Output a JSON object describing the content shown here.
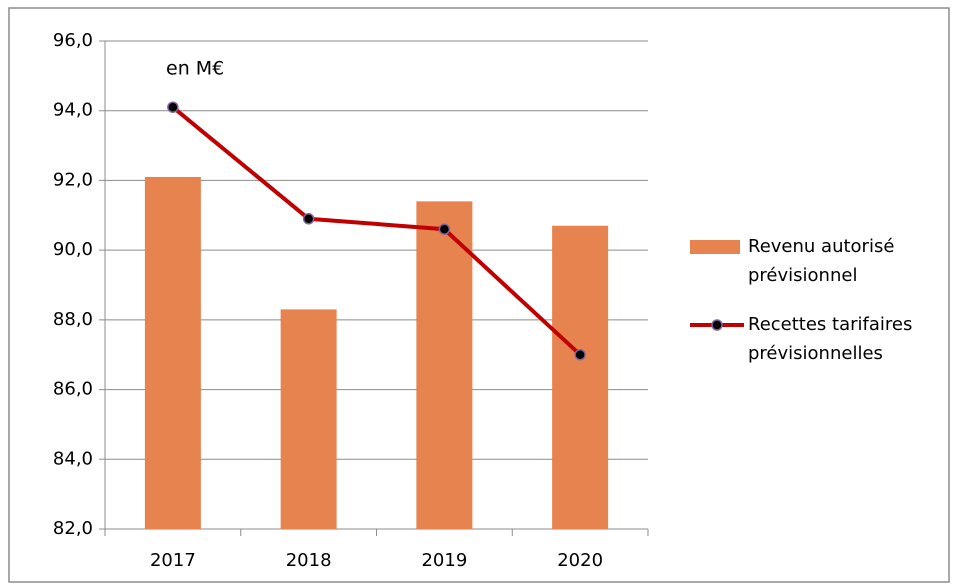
{
  "chart_data": {
    "type": "bar",
    "annotation": "en M€",
    "categories": [
      "2017",
      "2018",
      "2019",
      "2020"
    ],
    "series": [
      {
        "name": "Revenu autorisé prévisionnel",
        "type": "bar",
        "color": "#e6834f",
        "values": [
          92.1,
          88.3,
          91.4,
          90.7
        ]
      },
      {
        "name": "Recettes tarifaires prévisionnelles",
        "type": "line",
        "color": "#c00000",
        "marker_color": "#000000",
        "values": [
          94.1,
          90.9,
          90.6,
          87.0
        ]
      }
    ],
    "ylim": [
      82,
      96
    ],
    "yticks": [
      {
        "value": 82,
        "label": "82,0"
      },
      {
        "value": 84,
        "label": "84,0"
      },
      {
        "value": 86,
        "label": "86,0"
      },
      {
        "value": 88,
        "label": "88,0"
      },
      {
        "value": 90,
        "label": "90,0"
      },
      {
        "value": 92,
        "label": "92,0"
      },
      {
        "value": 94,
        "label": "94,0"
      },
      {
        "value": 96,
        "label": "96,0"
      }
    ],
    "grid": true,
    "legend": "right"
  }
}
